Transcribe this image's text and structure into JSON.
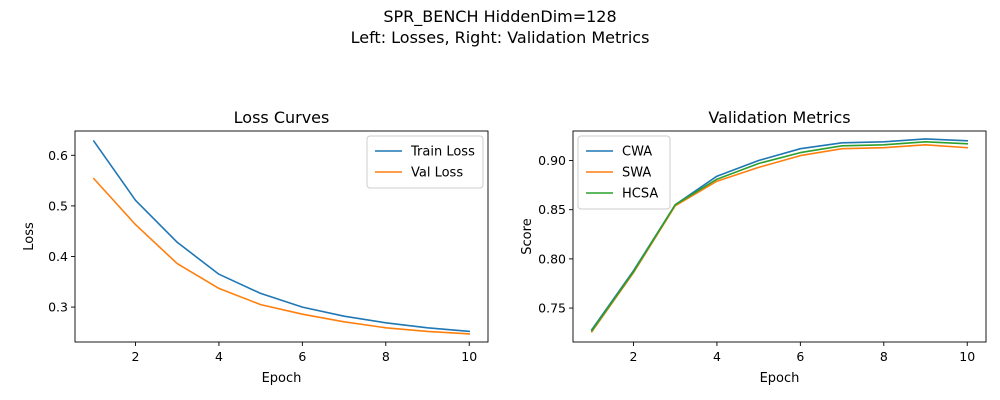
{
  "figure": {
    "suptitle_line1": "SPR_BENCH HiddenDim=128",
    "suptitle_line2": "Left: Losses, Right: Validation Metrics"
  },
  "chart_data": [
    {
      "type": "line",
      "title": "Loss Curves",
      "xlabel": "Epoch",
      "ylabel": "Loss",
      "x": [
        1,
        2,
        3,
        4,
        5,
        6,
        7,
        8,
        9,
        10
      ],
      "xlim": [
        0.55,
        10.45
      ],
      "ylim": [
        0.231,
        0.648
      ],
      "xticks": [
        2,
        4,
        6,
        8,
        10
      ],
      "yticks": [
        0.3,
        0.4,
        0.5,
        0.6
      ],
      "ytick_labels": [
        "0.3",
        "0.4",
        "0.5",
        "0.6"
      ],
      "grid": false,
      "legend_position": "upper right",
      "series": [
        {
          "name": "Train Loss",
          "color": "#1f77b4",
          "values": [
            0.628,
            0.511,
            0.428,
            0.365,
            0.327,
            0.3,
            0.282,
            0.269,
            0.259,
            0.252
          ]
        },
        {
          "name": "Val Loss",
          "color": "#ff7f0e",
          "values": [
            0.554,
            0.463,
            0.386,
            0.337,
            0.305,
            0.286,
            0.271,
            0.259,
            0.252,
            0.247
          ]
        }
      ]
    },
    {
      "type": "line",
      "title": "Validation Metrics",
      "xlabel": "Epoch",
      "ylabel": "Score",
      "x": [
        1,
        2,
        3,
        4,
        5,
        6,
        7,
        8,
        9,
        10
      ],
      "xlim": [
        0.55,
        10.45
      ],
      "ylim": [
        0.7155,
        0.93
      ],
      "xticks": [
        2,
        4,
        6,
        8,
        10
      ],
      "yticks": [
        0.75,
        0.8,
        0.85,
        0.9
      ],
      "ytick_labels": [
        "0.75",
        "0.80",
        "0.85",
        "0.90"
      ],
      "grid": false,
      "legend_position": "upper left",
      "series": [
        {
          "name": "CWA",
          "color": "#1f77b4",
          "values": [
            0.728,
            0.788,
            0.855,
            0.884,
            0.9,
            0.912,
            0.918,
            0.919,
            0.922,
            0.92
          ]
        },
        {
          "name": "SWA",
          "color": "#ff7f0e",
          "values": [
            0.726,
            0.786,
            0.854,
            0.879,
            0.893,
            0.905,
            0.912,
            0.913,
            0.916,
            0.913
          ]
        },
        {
          "name": "HCSA",
          "color": "#2ca02c",
          "values": [
            0.727,
            0.787,
            0.855,
            0.881,
            0.897,
            0.908,
            0.915,
            0.916,
            0.919,
            0.917
          ]
        }
      ]
    }
  ]
}
